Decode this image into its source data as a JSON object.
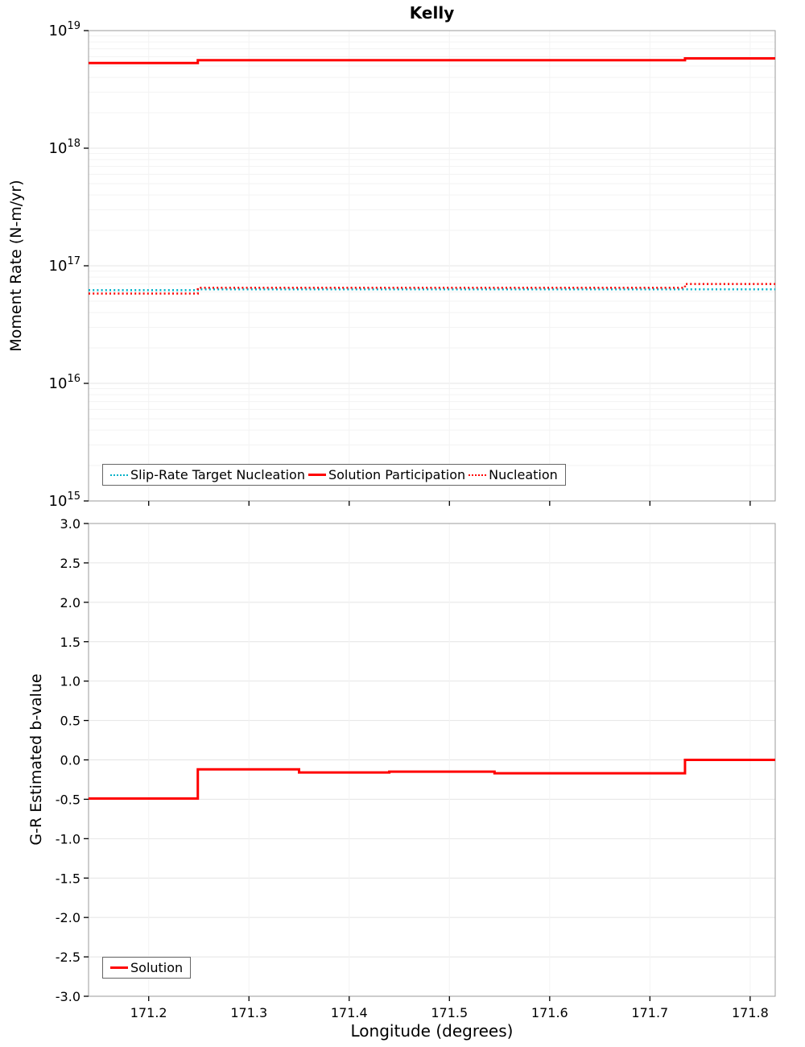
{
  "title": "Kelly",
  "colors": {
    "red": "#ff0000",
    "cyan": "#00b2c8",
    "grid_major": "#e4e4e4",
    "grid_minor": "#f3f3f3",
    "axis": "#000000",
    "frame": "#9b9b9b"
  },
  "x_axis": {
    "label": "Longitude (degrees)",
    "min": 171.14,
    "max": 171.825,
    "ticks": [
      171.2,
      171.3,
      171.4,
      171.5,
      171.6,
      171.7,
      171.8
    ],
    "tick_labels": [
      "171.2",
      "171.3",
      "171.4",
      "171.5",
      "171.6",
      "171.7",
      "171.8"
    ]
  },
  "chart_data": [
    {
      "type": "line",
      "title": "Kelly",
      "ylabel": "Moment Rate (N-m/yr)",
      "yscale": "log",
      "ylim": [
        1000000000000000.0,
        1e+19
      ],
      "yticks": [
        1000000000000000.0,
        1e+16,
        1e+17,
        1e+18,
        1e+19
      ],
      "ytick_labels": [
        "10^15",
        "10^16",
        "10^17",
        "10^18",
        "10^19"
      ],
      "show_x_tick_labels": false,
      "legend_position": "bottom-left",
      "series": [
        {
          "name": "Slip-Rate Target Nucleation",
          "color": "cyan",
          "style": "dotted",
          "width": 2.5,
          "segments": [
            [
              171.14,
              171.249,
              6.2e+16
            ],
            [
              171.249,
              171.735,
              6.3e+16
            ],
            [
              171.735,
              171.825,
              6.3e+16
            ]
          ]
        },
        {
          "name": "Solution Participation",
          "color": "red",
          "style": "solid",
          "width": 3,
          "segments": [
            [
              171.14,
              171.249,
              5.3e+18
            ],
            [
              171.249,
              171.735,
              5.6e+18
            ],
            [
              171.735,
              171.825,
              5.8e+18
            ]
          ]
        },
        {
          "name": "Nucleation",
          "color": "red",
          "style": "dotted",
          "width": 2.5,
          "segments": [
            [
              171.14,
              171.249,
              5.8e+16
            ],
            [
              171.249,
              171.735,
              6.5e+16
            ],
            [
              171.735,
              171.825,
              7e+16
            ]
          ]
        }
      ]
    },
    {
      "type": "line",
      "ylabel": "G-R Estimated b-value",
      "yscale": "linear",
      "ylim": [
        -3.0,
        3.0
      ],
      "yticks": [
        -3.0,
        -2.5,
        -2.0,
        -1.5,
        -1.0,
        -0.5,
        0.0,
        0.5,
        1.0,
        1.5,
        2.0,
        2.5,
        3.0
      ],
      "ytick_labels": [
        "-3.0",
        "-2.5",
        "-2.0",
        "-1.5",
        "-1.0",
        "-0.5",
        "0.0",
        "0.5",
        "1.0",
        "1.5",
        "2.0",
        "2.5",
        "3.0"
      ],
      "show_x_tick_labels": true,
      "legend_position": "bottom-left",
      "series": [
        {
          "name": "Solution",
          "color": "red",
          "style": "solid",
          "width": 3,
          "segments": [
            [
              171.14,
              171.249,
              -0.49
            ],
            [
              171.249,
              171.35,
              -0.12
            ],
            [
              171.35,
              171.44,
              -0.16
            ],
            [
              171.44,
              171.545,
              -0.15
            ],
            [
              171.545,
              171.735,
              -0.17
            ],
            [
              171.735,
              171.825,
              0.0
            ]
          ]
        }
      ]
    }
  ]
}
